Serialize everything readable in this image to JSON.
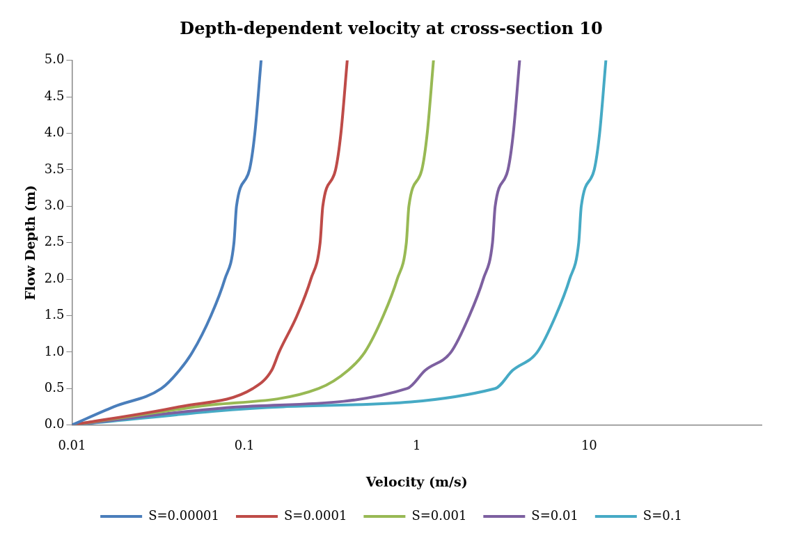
{
  "chart_data": {
    "type": "line",
    "title": "Depth-dependent velocity at cross-section 10",
    "xlabel": "Velocity (m/s)",
    "ylabel": "Flow Depth (m)",
    "log": "x",
    "xlim": [
      0.01,
      100
    ],
    "xticks": [
      0.01,
      0.1,
      1,
      10
    ],
    "ylim": [
      0,
      5
    ],
    "yticks": [
      {
        "value": 0,
        "label": "0.0"
      },
      {
        "value": 0.5,
        "label": "0.5"
      },
      {
        "value": 1,
        "label": "1.0"
      },
      {
        "value": 1.5,
        "label": "1.5"
      },
      {
        "value": 2,
        "label": "2.0"
      },
      {
        "value": 2.5,
        "label": "2.5"
      },
      {
        "value": 3,
        "label": "3.0"
      },
      {
        "value": 3.5,
        "label": "3.5"
      },
      {
        "value": 4,
        "label": "4.0"
      },
      {
        "value": 4.5,
        "label": "4.5"
      },
      {
        "value": 5,
        "label": "5.0"
      }
    ],
    "grid": false,
    "legend": "bottom",
    "marker": "none",
    "line_style": "solid",
    "series": [
      {
        "name": "S=0.00001",
        "color": "#4a7ebb",
        "x": [
          0.01,
          0.0175,
          0.033,
          0.042,
          0.05,
          0.064,
          0.077,
          0.087,
          0.09,
          0.107,
          0.115,
          0.125
        ],
        "values": [
          0,
          0.25,
          0.5,
          0.75,
          1,
          1.5,
          2,
          2.5,
          3,
          3.5,
          4,
          5
        ]
      },
      {
        "name": "S=0.0001",
        "color": "#be4b48",
        "x": [
          0.01,
          0.042,
          0.112,
          0.144,
          0.159,
          0.202,
          0.243,
          0.275,
          0.285,
          0.338,
          0.363,
          0.395
        ],
        "values": [
          0,
          0.25,
          0.5,
          0.75,
          1,
          1.5,
          2,
          2.5,
          3,
          3.5,
          4,
          5
        ]
      },
      {
        "name": "S=0.001",
        "color": "#98b954",
        "x": [
          0.01,
          0.052,
          0.27,
          0.4,
          0.5,
          0.64,
          0.77,
          0.87,
          0.9,
          1.07,
          1.15,
          1.25
        ],
        "values": [
          0,
          0.25,
          0.5,
          0.75,
          1,
          1.5,
          2,
          2.5,
          3,
          3.5,
          4,
          5
        ]
      },
      {
        "name": "S=0.01",
        "color": "#7d60a0",
        "x": [
          0.01,
          0.094,
          0.88,
          1.12,
          1.58,
          2.02,
          2.43,
          2.75,
          2.85,
          3.38,
          3.63,
          3.95
        ],
        "values": [
          0,
          0.25,
          0.5,
          0.75,
          1,
          1.5,
          2,
          2.5,
          3,
          3.5,
          4,
          5
        ]
      },
      {
        "name": "S=0.1",
        "color": "#46aac5",
        "x": [
          0.01,
          0.168,
          2.85,
          3.6,
          5,
          6.4,
          7.7,
          8.7,
          9,
          10.7,
          11.5,
          12.5
        ],
        "values": [
          0,
          0.25,
          0.5,
          0.75,
          1,
          1.5,
          2,
          2.5,
          3,
          3.5,
          4,
          5
        ]
      }
    ]
  }
}
